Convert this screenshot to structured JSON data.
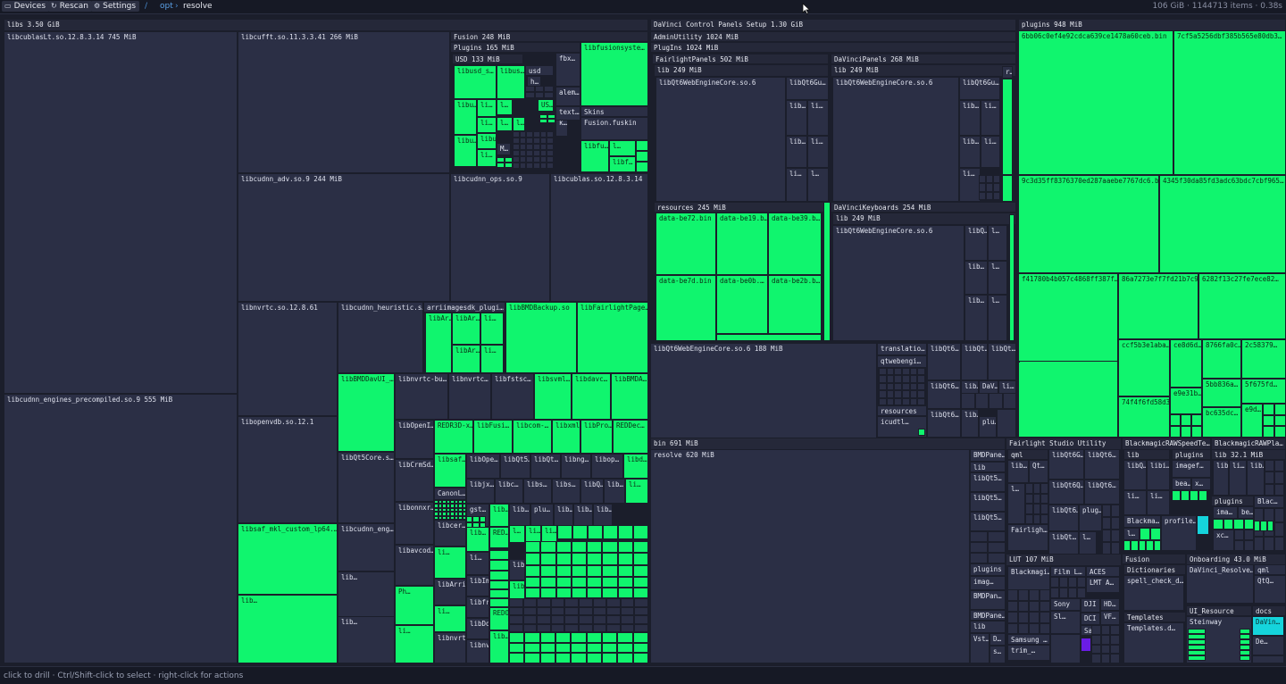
{
  "toolbar": {
    "devices_label": "Devices",
    "rescan_label": "Rescan",
    "settings_label": "Settings",
    "devices_icon": "drive-icon",
    "rescan_icon": "refresh-icon",
    "settings_icon": "gear-icon"
  },
  "breadcrumb": {
    "root": "/",
    "parts": [
      "opt",
      "resolve"
    ]
  },
  "stats": "106 GiB · 1144713 items · 0.38s",
  "status_hint": "click to drill · Ctrl/Shift-click to select · right-click for actions",
  "colors": {
    "dark": "#2b2f45",
    "green": "#10f56e",
    "cyan": "#15d4dc",
    "purple": "#6a1ce6"
  },
  "map": {
    "libs": {
      "header": "libs   3.50 GiB",
      "items": [
        "libcublasLt.so.12.8.3.14   745 MiB",
        "libcufft.so.11.3.3.41   266 MiB",
        "Fusion   248 MiB",
        "Plugins   165 MiB",
        "USD   133 MiB",
        "libusd_s…",
        "libus…",
        "usd",
        "h…",
        "libu…",
        "li…",
        "l…",
        "US…",
        "libu…",
        "li…",
        "l…",
        "l…",
        "k…",
        "libu…",
        "M…",
        "li…",
        "fbx…",
        "alem…",
        "text…",
        "libfusionsyste…",
        "Skins",
        "Fusion.fuskin",
        "libfu…",
        "l…",
        "libf…",
        "libcudnn_adv.so.9   244 MiB",
        "libcudnn_ops.so.9",
        "libcublas.so.12.8.3.14",
        "libcudnn_engines_precompiled.so.9   555 MiB",
        "libnvrtc.so.12.8.61",
        "libcudnn_heuristic.s…",
        "arriimagesdk_plugi…",
        "libAr…",
        "libAr…",
        "li…",
        "libAr…",
        "li…",
        "libBMDBackup.so",
        "libFairlightPage…",
        "libBMDDavUI_…",
        "libnvrtc-bu…",
        "libnvrtc…",
        "libfstsc…",
        "libsvml…",
        "libdavc…",
        "libBMDA…",
        "libopenvdb.so.12.1",
        "libOpenI…",
        "REDR3D-x…",
        "libFusi…",
        "libcom-…",
        "libxml…",
        "libPro…",
        "REDDec…",
        "libQt5Core.s…",
        "libCrmSd…",
        "libsaf…",
        "libOpe…",
        "libQt5…",
        "libQt…",
        "libng…",
        "libop…",
        "libd…",
        "CanonL…",
        "libjx…",
        "libc…",
        "libs…",
        "libs…",
        "libQ…",
        "lib…",
        "li…",
        "libonnxr…",
        "gst…",
        "lib…",
        "lib…",
        "plu…",
        "lib…",
        "lib…",
        "lib…",
        "libsaf_mkl_custom_lp64.…",
        "libcudnn_eng…",
        "libavcod…",
        "libcer…",
        "lib…",
        "RED…",
        "l…",
        "li…",
        "li…",
        "li…",
        "li…",
        "libfai…",
        "lib…",
        "Ph…",
        "libArriImage…",
        "libImmer…",
        "libxml…",
        "lib…",
        "li…",
        "libfraunhoferdcp.so",
        "REDOpe…",
        "lib…",
        "li…",
        "libnvrtc.so…",
        "libDolby…",
        "libnvr…",
        "lib…",
        "li…"
      ]
    },
    "control_panels": {
      "header": "DaVinci Control Panels Setup   1.30 GiB",
      "items": [
        "AdminUtility   1024 MiB",
        "PlugIns   1024 MiB",
        "FairlightPanels   502 MiB",
        "lib   249 MiB",
        "libQt6WebEngineCore.so.6",
        "libQt6Gu…",
        "lib…",
        "li…",
        "lib…",
        "li…",
        "li…",
        "l…",
        "DaVinciPanels   268 MiB",
        "lib   249 MiB",
        "libQt6WebEngineCore.so.6",
        "libQt6Gu…",
        "lib…",
        "li…",
        "lib…",
        "li…",
        "li…",
        "r…",
        "resources   245 MiB",
        "data-be72.bin",
        "data-be19.b…",
        "data-be39.b…",
        "data-be7d.bin",
        "data-be0b.…",
        "data-be2b.b…",
        "DaVinciKeyboards   254 MiB",
        "lib   249 MiB",
        "libQt6WebEngineCore.so.6",
        "libQ…",
        "l…",
        "lib…",
        "l…",
        "lib…",
        "l…",
        "libQt6WebEngineCore.so.6   188 MiB",
        "translatio…",
        "qtwebengi…",
        "resources",
        "icudtl…",
        "libQt6…",
        "libQt…",
        "libQt…",
        "libQt6…",
        "lib…",
        "DaV…",
        "li…",
        "libQt6…",
        "lib…",
        "plu…"
      ]
    },
    "plugins": {
      "header": "plugins   948 MiB",
      "items": [
        "6bb06c0ef4e92cdca639ce1478a60ceb.bin",
        "7cf5a5256dbf385b565e80db3…",
        "9c3d35ff8376370ed287aaebe7767dc6.b…",
        "4345f30da85fd3adc63bdc7cbf965…",
        "f41780b4b057c4868ff387f…",
        "86a7273e7f7fd21b7c9…",
        "6282f13c27fe7ece82…",
        "4479d0d3dac447ed0b77f5f7…",
        "ccf5b3e1aba…",
        "ce8d6d…",
        "8766fa0c…",
        "2c58379…",
        "5bb836a…",
        "5f675fd…",
        "e9e31b…",
        "74f4f6fd58d3…",
        "bc635dc…",
        "e9d…"
      ]
    },
    "bin": {
      "header": "bin   691 MiB",
      "items": [
        "resolve   620 MiB",
        "BMDPane…",
        "lib",
        "libQt5…",
        "libQt5…",
        "libQt5…",
        "plugins",
        "imag…",
        "BMDPan…",
        "BMDPane…",
        "lib",
        "Vst…",
        "D…",
        "s…"
      ]
    },
    "fairlight_studio": {
      "header": "Fairlight Studio Utility",
      "items": [
        "qml",
        "lib…",
        "Qt…",
        "libQt6G…",
        "libQt6…",
        "libQt6Q…",
        "libQt6…",
        "libQt6…",
        "plug…",
        "l…",
        "Fairligh…",
        "libQt…",
        "l…"
      ]
    },
    "blackmagic_raw_speed": {
      "header": "BlackmagicRAWSpeedTe…",
      "items": [
        "lib",
        "plugins",
        "libQ…",
        "libi…",
        "imagef…",
        "bea…",
        "x…",
        "li…",
        "li…",
        "Blackma…",
        "profile…",
        "l…"
      ]
    },
    "blackmagic_raw_player": {
      "header": "BlackmagicRAWPla…",
      "items": [
        "lib   32.1 MiB",
        "lib",
        "li…",
        "lib…",
        "plugins",
        "Blac…",
        "ima…",
        "be…",
        "xc…"
      ]
    },
    "lut": {
      "header": "LUT   107 MiB",
      "items": [
        "Blackmagi…",
        "Film L…",
        "ACES",
        "LMT A…",
        "Sony",
        "DJI",
        "HD…",
        "Sl…",
        "DCI",
        "VF…",
        "Samsung",
        "Samsung …",
        "trim_…"
      ]
    },
    "fusion2": {
      "header": "Fusion",
      "items": [
        "Dictionaries",
        "spell_check_d…",
        "Templates",
        "Templates.d…"
      ]
    },
    "onboarding": {
      "header": "Onboarding   43.0 MiB",
      "items": [
        "DaVinci_Resolve…",
        "qml",
        "QtQ…"
      ]
    },
    "ui_resource": {
      "header": "UI_Resource",
      "items": [
        "Steinway"
      ]
    },
    "docs": {
      "header": "docs",
      "items": [
        "DaVin…",
        "De…"
      ]
    }
  }
}
